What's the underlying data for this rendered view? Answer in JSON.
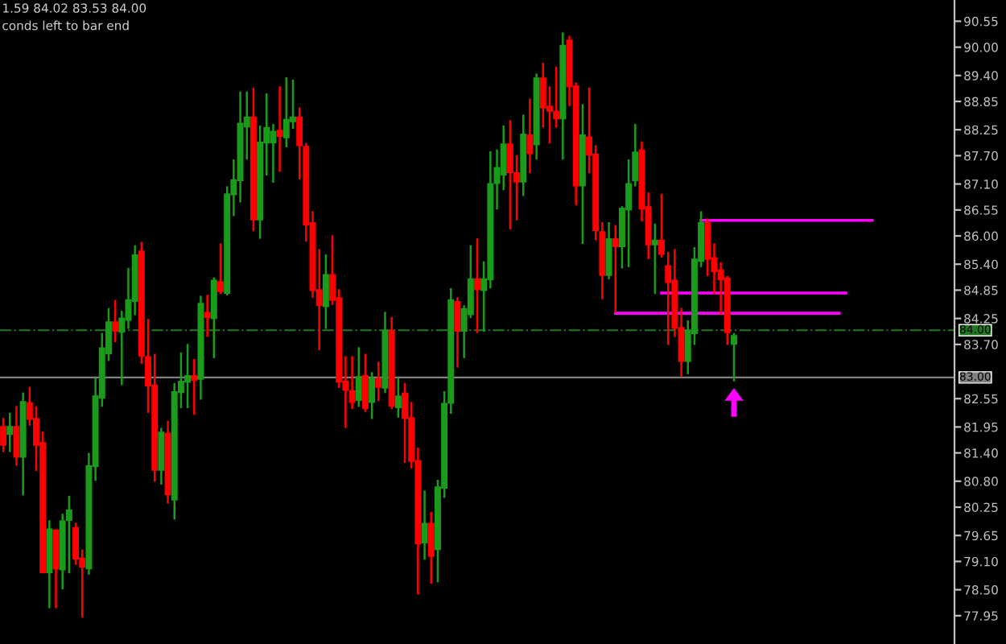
{
  "chart_data": {
    "type": "candlestick",
    "categories": [
      null,
      null,
      null,
      null,
      null,
      null,
      null,
      null,
      null,
      null,
      null,
      null,
      null,
      null,
      null,
      null,
      null,
      null,
      null,
      null,
      null,
      null,
      null,
      null,
      null,
      null,
      null,
      null,
      null,
      null,
      null,
      null,
      null,
      null,
      null,
      null,
      null,
      null,
      null,
      null,
      null,
      null,
      null,
      null,
      null,
      null,
      null,
      null,
      null,
      null,
      null,
      null,
      null,
      null,
      null,
      null,
      null,
      null,
      null,
      null,
      null,
      null,
      null,
      null,
      null,
      null,
      null,
      null,
      null,
      null,
      null,
      null,
      null,
      null,
      null,
      null,
      null,
      null,
      null,
      null,
      null,
      null,
      null,
      null,
      null,
      null,
      null,
      null,
      null,
      null,
      null,
      null,
      null,
      null,
      null,
      null,
      null,
      null,
      null,
      null,
      null,
      null,
      null,
      null,
      null,
      null,
      null,
      null,
      null,
      null,
      null,
      null,
      null,
      null,
      null,
      null,
      null,
      null,
      null,
      null,
      null,
      null,
      null,
      null,
      null,
      null,
      null,
      null,
      null,
      null,
      null,
      null,
      null,
      null,
      null,
      null,
      null,
      null,
      null,
      null,
      null,
      null,
      null,
      null,
      null
    ],
    "ohlc": [
      [
        81.95,
        82.12,
        81.44,
        81.57
      ],
      [
        81.8,
        82.23,
        81.44,
        81.95
      ],
      [
        81.95,
        82.37,
        81.15,
        81.32
      ],
      [
        81.32,
        82.66,
        80.52,
        82.48
      ],
      [
        82.46,
        82.78,
        82.0,
        82.12
      ],
      [
        82.12,
        82.37,
        81.04,
        81.57
      ],
      [
        81.61,
        81.83,
        78.87,
        78.87
      ],
      [
        78.87,
        79.95,
        78.13,
        79.78
      ],
      [
        79.76,
        79.76,
        78.13,
        78.95
      ],
      [
        78.93,
        80.09,
        78.53,
        79.95
      ],
      [
        79.98,
        80.47,
        78.87,
        80.18
      ],
      [
        79.81,
        79.9,
        79.05,
        79.16
      ],
      [
        79.16,
        79.33,
        77.93,
        78.99
      ],
      [
        78.95,
        81.38,
        78.84,
        81.12
      ],
      [
        81.12,
        82.97,
        80.83,
        82.6
      ],
      [
        82.57,
        83.92,
        82.4,
        83.62
      ],
      [
        83.51,
        84.45,
        83.37,
        84.17
      ],
      [
        84.17,
        84.62,
        83.77,
        83.99
      ],
      [
        83.97,
        84.39,
        82.86,
        84.25
      ],
      [
        84.22,
        85.3,
        84.05,
        84.64
      ],
      [
        84.62,
        85.78,
        84.34,
        85.59
      ],
      [
        85.67,
        85.85,
        83.31,
        83.46
      ],
      [
        83.43,
        84.22,
        82.27,
        82.83
      ],
      [
        82.83,
        83.48,
        80.81,
        81.04
      ],
      [
        81.04,
        81.91,
        80.75,
        81.83
      ],
      [
        81.81,
        82.06,
        80.35,
        80.52
      ],
      [
        80.41,
        82.86,
        80.01,
        82.69
      ],
      [
        82.69,
        83.51,
        82.37,
        82.91
      ],
      [
        82.91,
        83.69,
        82.37,
        83.03
      ],
      [
        83.03,
        83.37,
        82.23,
        82.95
      ],
      [
        82.97,
        84.71,
        82.55,
        84.56
      ],
      [
        84.37,
        84.73,
        83.88,
        84.28
      ],
      [
        84.26,
        85.1,
        83.43,
        85.05
      ],
      [
        85.02,
        85.82,
        84.79,
        84.83
      ],
      [
        84.79,
        87.03,
        84.76,
        86.88
      ],
      [
        86.88,
        87.6,
        86.44,
        87.18
      ],
      [
        87.18,
        89.04,
        86.73,
        88.38
      ],
      [
        88.32,
        89.04,
        87.64,
        88.51
      ],
      [
        88.51,
        89.12,
        86.12,
        86.35
      ],
      [
        86.35,
        88.32,
        85.96,
        87.98
      ],
      [
        87.98,
        89.0,
        87.3,
        88.29
      ],
      [
        87.98,
        88.35,
        87.15,
        88.21
      ],
      [
        88.23,
        89.15,
        87.38,
        88.12
      ],
      [
        88.09,
        89.34,
        87.9,
        88.46
      ],
      [
        88.43,
        89.29,
        88.29,
        88.51
      ],
      [
        88.51,
        88.7,
        87.22,
        87.92
      ],
      [
        87.89,
        87.95,
        85.9,
        86.24
      ],
      [
        86.27,
        86.5,
        84.71,
        84.85
      ],
      [
        84.85,
        85.7,
        83.6,
        84.53
      ],
      [
        84.51,
        85.59,
        84.05,
        85.17
      ],
      [
        85.17,
        85.99,
        84.56,
        84.64
      ],
      [
        84.68,
        84.85,
        82.8,
        82.91
      ],
      [
        82.91,
        83.43,
        81.95,
        82.74
      ],
      [
        82.71,
        83.43,
        82.35,
        82.48
      ],
      [
        82.52,
        83.62,
        82.4,
        83.01
      ],
      [
        83.03,
        83.48,
        82.29,
        82.35
      ],
      [
        82.48,
        83.09,
        82.14,
        82.97
      ],
      [
        82.97,
        83.31,
        82.52,
        82.8
      ],
      [
        82.78,
        84.37,
        82.69,
        83.99
      ],
      [
        83.99,
        84.26,
        82.35,
        82.4
      ],
      [
        82.37,
        82.97,
        82.17,
        82.6
      ],
      [
        82.66,
        82.86,
        81.21,
        82.14
      ],
      [
        82.14,
        82.46,
        81.09,
        81.23
      ],
      [
        81.23,
        81.49,
        78.42,
        79.48
      ],
      [
        79.5,
        80.58,
        79.16,
        79.9
      ],
      [
        79.9,
        80.13,
        78.65,
        79.22
      ],
      [
        79.36,
        80.81,
        78.68,
        80.67
      ],
      [
        80.66,
        82.69,
        80.47,
        82.44
      ],
      [
        82.46,
        84.87,
        82.25,
        84.64
      ],
      [
        84.6,
        84.68,
        83.23,
        83.99
      ],
      [
        83.99,
        84.51,
        83.43,
        84.45
      ],
      [
        84.34,
        85.78,
        84.28,
        85.08
      ],
      [
        85.08,
        85.93,
        83.96,
        84.87
      ],
      [
        84.85,
        85.44,
        83.99,
        85.08
      ],
      [
        85.08,
        87.77,
        84.91,
        87.1
      ],
      [
        87.12,
        87.81,
        86.58,
        87.44
      ],
      [
        87.3,
        88.32,
        86.99,
        87.94
      ],
      [
        87.94,
        88.43,
        86.16,
        87.35
      ],
      [
        87.33,
        87.69,
        86.35,
        87.15
      ],
      [
        87.15,
        88.55,
        86.87,
        88.15
      ],
      [
        88.13,
        88.89,
        87.35,
        87.75
      ],
      [
        87.94,
        89.42,
        87.64,
        89.34
      ],
      [
        89.34,
        89.65,
        88.32,
        88.72
      ],
      [
        88.74,
        89.15,
        87.98,
        88.65
      ],
      [
        88.63,
        89.57,
        88.32,
        88.49
      ],
      [
        88.49,
        90.29,
        87.64,
        90.03
      ],
      [
        90.14,
        90.22,
        88.77,
        89.17
      ],
      [
        89.17,
        89.23,
        86.67,
        87.07
      ],
      [
        87.07,
        88.77,
        85.85,
        88.13
      ],
      [
        88.09,
        89.12,
        87.35,
        87.72
      ],
      [
        87.72,
        87.9,
        85.93,
        86.12
      ],
      [
        86.08,
        86.27,
        84.68,
        85.17
      ],
      [
        85.17,
        86.27,
        85.1,
        85.93
      ],
      [
        85.93,
        86.21,
        84.39,
        85.78
      ],
      [
        85.78,
        86.61,
        85.33,
        86.58
      ],
      [
        86.56,
        87.6,
        85.36,
        87.1
      ],
      [
        87.18,
        88.35,
        87.07,
        87.77
      ],
      [
        87.81,
        87.98,
        86.33,
        86.58
      ],
      [
        86.61,
        86.9,
        85.53,
        85.82
      ],
      [
        85.82,
        86.24,
        84.79,
        85.9
      ],
      [
        85.9,
        86.87,
        85.56,
        85.62
      ],
      [
        85.36,
        85.64,
        83.71,
        85.02
      ],
      [
        85.05,
        85.7,
        83.88,
        84.05
      ],
      [
        84.05,
        84.45,
        83.03,
        83.35
      ],
      [
        83.35,
        84.19,
        83.09,
        83.99
      ],
      [
        83.94,
        85.74,
        83.71,
        85.5
      ],
      [
        85.47,
        86.5,
        85.36,
        86.27
      ],
      [
        86.27,
        86.35,
        85.17,
        85.51
      ],
      [
        85.53,
        85.82,
        84.79,
        85.25
      ],
      [
        85.27,
        85.42,
        84.34,
        85.08
      ],
      [
        85.1,
        85.13,
        83.71,
        83.96
      ],
      [
        83.71,
        83.92,
        82.94,
        83.88
      ],
      null,
      null,
      null,
      null,
      null,
      null,
      null,
      null,
      null,
      null,
      null,
      null,
      null,
      null,
      null,
      null,
      null,
      null,
      null,
      null,
      null,
      null,
      null,
      null,
      null,
      null,
      null,
      null,
      null,
      null,
      null,
      null,
      null
    ],
    "colors": [
      "#ff0000",
      "#1a9c1a",
      "#ff0000",
      "#1a9c1a",
      "#ff0000",
      "#ff0000",
      "#ff0000",
      "#1a9c1a",
      "#ff0000",
      "#1a9c1a",
      "#1a9c1a",
      "#ff0000",
      "#ff0000",
      "#1a9c1a",
      "#1a9c1a",
      "#1a9c1a",
      "#1a9c1a",
      "#ff0000",
      "#1a9c1a",
      "#1a9c1a",
      "#1a9c1a",
      "#ff0000",
      "#ff0000",
      "#ff0000",
      "#1a9c1a",
      "#ff0000",
      "#1a9c1a",
      "#1a9c1a",
      "#1a9c1a",
      "#ff0000",
      "#1a9c1a",
      "#ff0000",
      "#1a9c1a",
      "#ff0000",
      "#1a9c1a",
      "#1a9c1a",
      "#1a9c1a",
      "#1a9c1a",
      "#ff0000",
      "#1a9c1a",
      "#1a9c1a",
      "#1a9c1a",
      "#ff0000",
      "#1a9c1a",
      "#1a9c1a",
      "#ff0000",
      "#ff0000",
      "#ff0000",
      "#ff0000",
      "#1a9c1a",
      "#ff0000",
      "#ff0000",
      "#ff0000",
      "#ff0000",
      "#1a9c1a",
      "#ff0000",
      "#1a9c1a",
      "#ff0000",
      "#1a9c1a",
      "#ff0000",
      "#1a9c1a",
      "#ff0000",
      "#ff0000",
      "#ff0000",
      "#1a9c1a",
      "#ff0000",
      "#1a9c1a",
      "#1a9c1a",
      "#1a9c1a",
      "#ff0000",
      "#1a9c1a",
      "#1a9c1a",
      "#ff0000",
      "#1a9c1a",
      "#1a9c1a",
      "#1a9c1a",
      "#1a9c1a",
      "#ff0000",
      "#ff0000",
      "#1a9c1a",
      "#ff0000",
      "#1a9c1a",
      "#ff0000",
      "#ff0000",
      "#ff0000",
      "#1a9c1a",
      "#ff0000",
      "#ff0000",
      "#1a9c1a",
      "#ff0000",
      "#ff0000",
      "#ff0000",
      "#1a9c1a",
      "#ff0000",
      "#1a9c1a",
      "#1a9c1a",
      "#1a9c1a",
      "#ff0000",
      "#ff0000",
      "#1a9c1a",
      "#ff0000",
      "#ff0000",
      "#ff0000",
      "#ff0000",
      "#1a9c1a",
      "#1a9c1a",
      "#1a9c1a",
      "#ff0000",
      "#ff0000",
      "#ff0000",
      "#ff0000",
      "#1a9c1a",
      null,
      null,
      null,
      null,
      null,
      null,
      null,
      null,
      null,
      null,
      null,
      null,
      null,
      null,
      null,
      null,
      null,
      null,
      null,
      null,
      null,
      null,
      null,
      null,
      null,
      null,
      null,
      null,
      null,
      null,
      null,
      null,
      null
    ],
    "series": [
      {
        "type": "line",
        "color": "#ff00ff",
        "values": [
          null,
          null,
          null,
          null,
          null,
          null,
          null,
          null,
          null,
          null,
          null,
          null,
          null,
          null,
          null,
          null,
          null,
          null,
          null,
          null,
          null,
          null,
          null,
          null,
          null,
          null,
          null,
          null,
          null,
          null,
          null,
          null,
          null,
          null,
          null,
          null,
          null,
          null,
          null,
          null,
          null,
          null,
          null,
          null,
          null,
          null,
          null,
          null,
          null,
          null,
          null,
          null,
          null,
          null,
          null,
          null,
          null,
          null,
          null,
          null,
          null,
          null,
          null,
          null,
          null,
          null,
          null,
          null,
          null,
          null,
          null,
          null,
          null,
          null,
          null,
          null,
          null,
          null,
          null,
          null,
          null,
          null,
          null,
          null,
          null,
          null,
          null,
          null,
          null,
          null,
          null,
          null,
          null,
          null,
          null,
          null,
          null,
          null,
          null,
          null,
          null,
          null,
          null,
          null,
          null,
          null,
          86.33,
          86.33,
          86.33,
          86.33,
          86.33,
          86.33,
          86.33,
          86.33,
          86.33,
          86.33,
          86.33,
          86.33,
          86.33,
          86.33,
          86.33,
          86.33,
          86.33,
          86.33,
          86.33,
          86.33,
          86.33,
          86.33,
          86.33,
          86.33,
          86.33,
          86.33,
          86.33,
          null,
          null,
          null,
          null,
          null,
          null,
          null,
          null,
          null,
          null,
          null,
          null
        ]
      },
      {
        "type": "line",
        "color": "#ff00ff",
        "values": [
          null,
          null,
          null,
          null,
          null,
          null,
          null,
          null,
          null,
          null,
          null,
          null,
          null,
          null,
          null,
          null,
          null,
          null,
          null,
          null,
          null,
          null,
          null,
          null,
          null,
          null,
          null,
          null,
          null,
          null,
          null,
          null,
          null,
          null,
          null,
          null,
          null,
          null,
          null,
          null,
          null,
          null,
          null,
          null,
          null,
          null,
          null,
          null,
          null,
          null,
          null,
          null,
          null,
          null,
          null,
          null,
          null,
          null,
          null,
          null,
          null,
          null,
          null,
          null,
          null,
          null,
          null,
          null,
          null,
          null,
          null,
          null,
          null,
          null,
          null,
          null,
          null,
          null,
          null,
          null,
          null,
          null,
          null,
          null,
          null,
          null,
          null,
          null,
          null,
          null,
          null,
          null,
          null,
          null,
          null,
          null,
          null,
          null,
          null,
          null,
          84.79,
          84.79,
          84.79,
          84.79,
          84.79,
          84.79,
          84.79,
          84.79,
          84.79,
          84.79,
          84.79,
          84.79,
          84.79,
          84.79,
          84.79,
          84.79,
          84.79,
          84.79,
          84.79,
          84.79,
          84.79,
          84.79,
          84.79,
          84.79,
          84.79,
          84.79,
          84.79,
          84.79,
          84.79,
          null,
          null,
          null,
          null,
          null,
          null,
          null,
          null,
          null,
          null,
          null,
          null,
          null,
          null,
          null,
          null
        ]
      },
      {
        "type": "line",
        "color": "#ff00ff",
        "values": [
          null,
          null,
          null,
          null,
          null,
          null,
          null,
          null,
          null,
          null,
          null,
          null,
          null,
          null,
          null,
          null,
          null,
          null,
          null,
          null,
          null,
          null,
          null,
          null,
          null,
          null,
          null,
          null,
          null,
          null,
          null,
          null,
          null,
          null,
          null,
          null,
          null,
          null,
          null,
          null,
          null,
          null,
          null,
          null,
          null,
          null,
          null,
          null,
          null,
          null,
          null,
          null,
          null,
          null,
          null,
          null,
          null,
          null,
          null,
          null,
          null,
          null,
          null,
          null,
          null,
          null,
          null,
          null,
          null,
          null,
          null,
          null,
          null,
          null,
          null,
          null,
          null,
          null,
          null,
          null,
          null,
          null,
          null,
          null,
          null,
          null,
          null,
          null,
          null,
          null,
          null,
          null,
          null,
          84.36,
          84.36,
          84.36,
          84.36,
          84.36,
          84.36,
          84.36,
          84.36,
          84.36,
          84.36,
          84.36,
          84.36,
          84.36,
          84.36,
          84.36,
          84.36,
          84.36,
          84.36,
          84.36,
          84.36,
          84.36,
          84.36,
          84.36,
          84.36,
          84.36,
          84.36,
          84.36,
          84.36,
          84.36,
          84.36,
          84.36,
          84.36,
          84.36,
          84.36,
          84.36,
          null,
          null,
          null,
          null,
          null,
          null,
          null,
          null,
          null,
          null,
          null,
          null,
          null,
          null,
          null,
          null,
          null
        ]
      }
    ],
    "ref_lines": [
      {
        "axis": "y",
        "value": 84.0,
        "label": "84.00",
        "color": "#1f7a1f",
        "line_style": "dashed"
      },
      {
        "axis": "y",
        "value": 83.0,
        "label": "83.00",
        "color": "#808080",
        "line_style": "solid"
      }
    ],
    "ylim": [
      77.35,
      91.0
    ],
    "yticks": [
      {
        "value": 90.55,
        "label": "90.55"
      },
      {
        "value": 90.0,
        "label": "90.00"
      },
      {
        "value": 89.4,
        "label": "89.40"
      },
      {
        "value": 88.85,
        "label": "88.85"
      },
      {
        "value": 88.25,
        "label": "88.25"
      },
      {
        "value": 87.7,
        "label": "87.70"
      },
      {
        "value": 87.1,
        "label": "87.10"
      },
      {
        "value": 86.55,
        "label": "86.55"
      },
      {
        "value": 86.0,
        "label": "86.00"
      },
      {
        "value": 85.4,
        "label": "85.40"
      },
      {
        "value": 84.85,
        "label": "84.85"
      },
      {
        "value": 84.25,
        "label": "84.25"
      },
      {
        "value": 83.7,
        "label": "83.70"
      },
      {
        "value": 82.55,
        "label": "82.55"
      },
      {
        "value": 81.95,
        "label": "81.95"
      },
      {
        "value": 81.4,
        "label": "81.40"
      },
      {
        "value": 80.8,
        "label": "80.80"
      },
      {
        "value": 80.25,
        "label": "80.25"
      },
      {
        "value": 79.65,
        "label": "79.65"
      },
      {
        "value": 79.1,
        "label": "79.10"
      },
      {
        "value": 78.5,
        "label": "78.50"
      },
      {
        "value": 77.95,
        "label": "77.95"
      }
    ],
    "tick_labels": "y",
    "annotations": [
      "1.59 84.02 83.53 84.00",
      "conds left to bar end"
    ]
  }
}
